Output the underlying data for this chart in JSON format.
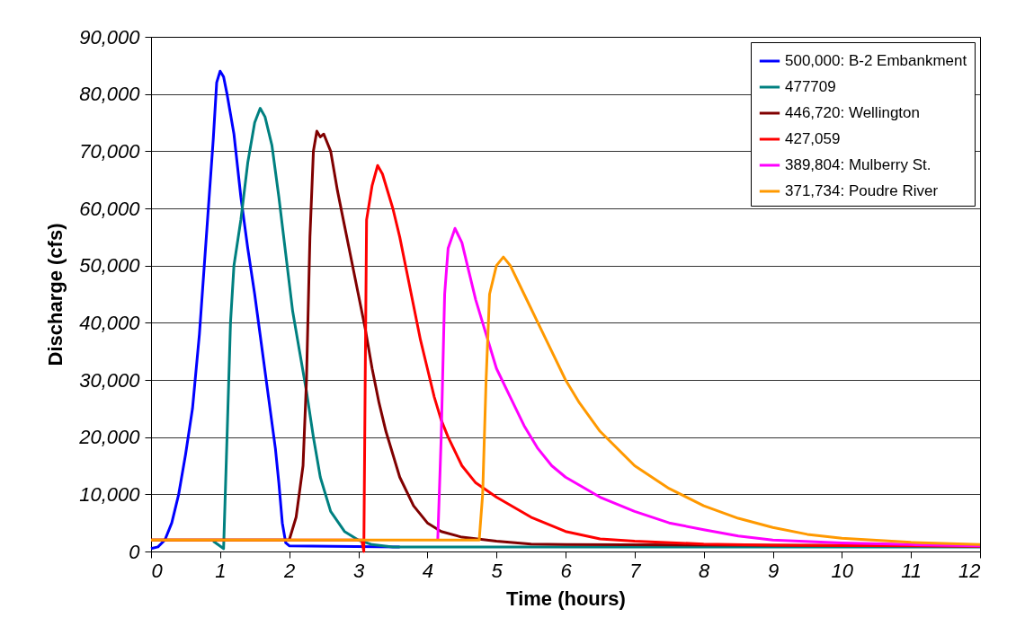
{
  "chart_data": {
    "type": "line",
    "xlabel": "Time (hours)",
    "ylabel": "Discharge (cfs)",
    "xlim": [
      0,
      12
    ],
    "ylim": [
      0,
      90000
    ],
    "xticks": [
      0,
      1,
      2,
      3,
      4,
      5,
      6,
      7,
      8,
      9,
      10,
      11,
      12
    ],
    "yticks": [
      0,
      {
        "value": 10000,
        "label": "10,000"
      },
      {
        "value": 20000,
        "label": "20,000"
      },
      {
        "value": 30000,
        "label": "30,000"
      },
      {
        "value": 40000,
        "label": "40,000"
      },
      {
        "value": 50000,
        "label": "50,000"
      },
      {
        "value": 60000,
        "label": "60,000"
      },
      {
        "value": 70000,
        "label": "70,000"
      },
      {
        "value": 80000,
        "label": "80,000"
      },
      {
        "value": 90000,
        "label": "90,000"
      }
    ],
    "grid": "y",
    "legend": "top right",
    "marker": "none",
    "line_style": "solid",
    "series": [
      {
        "name": "500,000: B-2 Embankment",
        "color": "#0000ff",
        "x": [
          0,
          0.1,
          0.2,
          0.3,
          0.4,
          0.5,
          0.6,
          0.7,
          0.8,
          0.9,
          0.95,
          1.0,
          1.05,
          1.1,
          1.2,
          1.3,
          1.4,
          1.5,
          1.6,
          1.7,
          1.8,
          1.85,
          1.9,
          1.95,
          2.0,
          3.6
        ],
        "values": [
          500,
          800,
          2000,
          5000,
          10000,
          17000,
          25000,
          38000,
          55000,
          72000,
          82000,
          84000,
          83000,
          80000,
          73000,
          62000,
          53000,
          45000,
          36000,
          27000,
          18000,
          12000,
          5000,
          1500,
          1000,
          800
        ]
      },
      {
        "name": "477709",
        "color": "#008080",
        "x": [
          0.9,
          1.05,
          1.1,
          1.15,
          1.2,
          1.3,
          1.4,
          1.5,
          1.58,
          1.65,
          1.75,
          1.85,
          1.95,
          2.05,
          2.15,
          2.25,
          2.35,
          2.45,
          2.6,
          2.8,
          3.0,
          3.2,
          3.5,
          12
        ],
        "values": [
          1800,
          500,
          20000,
          40000,
          50000,
          58000,
          68000,
          75000,
          77500,
          76000,
          71000,
          62000,
          52000,
          42000,
          35000,
          28000,
          20000,
          13000,
          7000,
          3500,
          2000,
          1200,
          800,
          800
        ]
      },
      {
        "name": "446,720: Wellington",
        "color": "#800000",
        "x": [
          0,
          2.0,
          2.1,
          2.2,
          2.25,
          2.3,
          2.35,
          2.4,
          2.45,
          2.5,
          2.6,
          2.7,
          2.8,
          2.9,
          3.0,
          3.1,
          3.2,
          3.3,
          3.4,
          3.5,
          3.6,
          3.8,
          4.0,
          4.2,
          4.5,
          5.0,
          5.5,
          6.0,
          12
        ],
        "values": [
          2000,
          2000,
          6000,
          15000,
          30000,
          55000,
          70000,
          73500,
          72500,
          73000,
          70000,
          63000,
          57000,
          51000,
          45000,
          39000,
          32000,
          26000,
          21000,
          17000,
          13000,
          8000,
          5000,
          3500,
          2500,
          1800,
          1300,
          1200,
          1000
        ]
      },
      {
        "name": "427,059",
        "color": "#ff0000",
        "x": [
          0,
          3.05,
          3.08,
          3.1,
          3.12,
          3.2,
          3.28,
          3.35,
          3.5,
          3.6,
          3.7,
          3.8,
          3.9,
          4.0,
          4.1,
          4.2,
          4.3,
          4.5,
          4.7,
          5.0,
          5.5,
          6.0,
          6.5,
          7.0,
          8.0,
          9.0,
          12
        ],
        "values": [
          2000,
          2000,
          0,
          30000,
          58000,
          64000,
          67500,
          66000,
          60000,
          55000,
          49000,
          43000,
          37000,
          32000,
          27000,
          23000,
          20000,
          15000,
          12000,
          9500,
          6000,
          3500,
          2200,
          1800,
          1300,
          1100,
          900
        ]
      },
      {
        "name": "389,804: Mulberry St.",
        "color": "#ff00ff",
        "x": [
          4.15,
          4.2,
          4.25,
          4.3,
          4.4,
          4.5,
          4.6,
          4.7,
          4.8,
          4.9,
          5.0,
          5.2,
          5.4,
          5.6,
          5.8,
          6.0,
          6.5,
          7.0,
          7.5,
          8.0,
          8.5,
          9.0,
          10,
          11,
          12
        ],
        "values": [
          2000,
          20000,
          45000,
          53000,
          56500,
          54000,
          49000,
          44000,
          40000,
          36000,
          32000,
          27000,
          22000,
          18000,
          15000,
          13000,
          9500,
          7000,
          5000,
          3800,
          2700,
          2000,
          1500,
          1200,
          1000
        ]
      },
      {
        "name": "371,734: Poudre River",
        "color": "#ff9900",
        "x": [
          0,
          4.75,
          4.8,
          4.85,
          4.9,
          5.0,
          5.1,
          5.2,
          5.4,
          5.6,
          5.8,
          6.0,
          6.2,
          6.5,
          7.0,
          7.5,
          8.0,
          8.5,
          9.0,
          9.5,
          10,
          11,
          12
        ],
        "values": [
          2000,
          2000,
          10000,
          30000,
          45000,
          50000,
          51500,
          50000,
          45000,
          40000,
          35000,
          30000,
          26000,
          21000,
          15000,
          11000,
          8000,
          5800,
          4200,
          3000,
          2300,
          1600,
          1200
        ]
      }
    ]
  }
}
